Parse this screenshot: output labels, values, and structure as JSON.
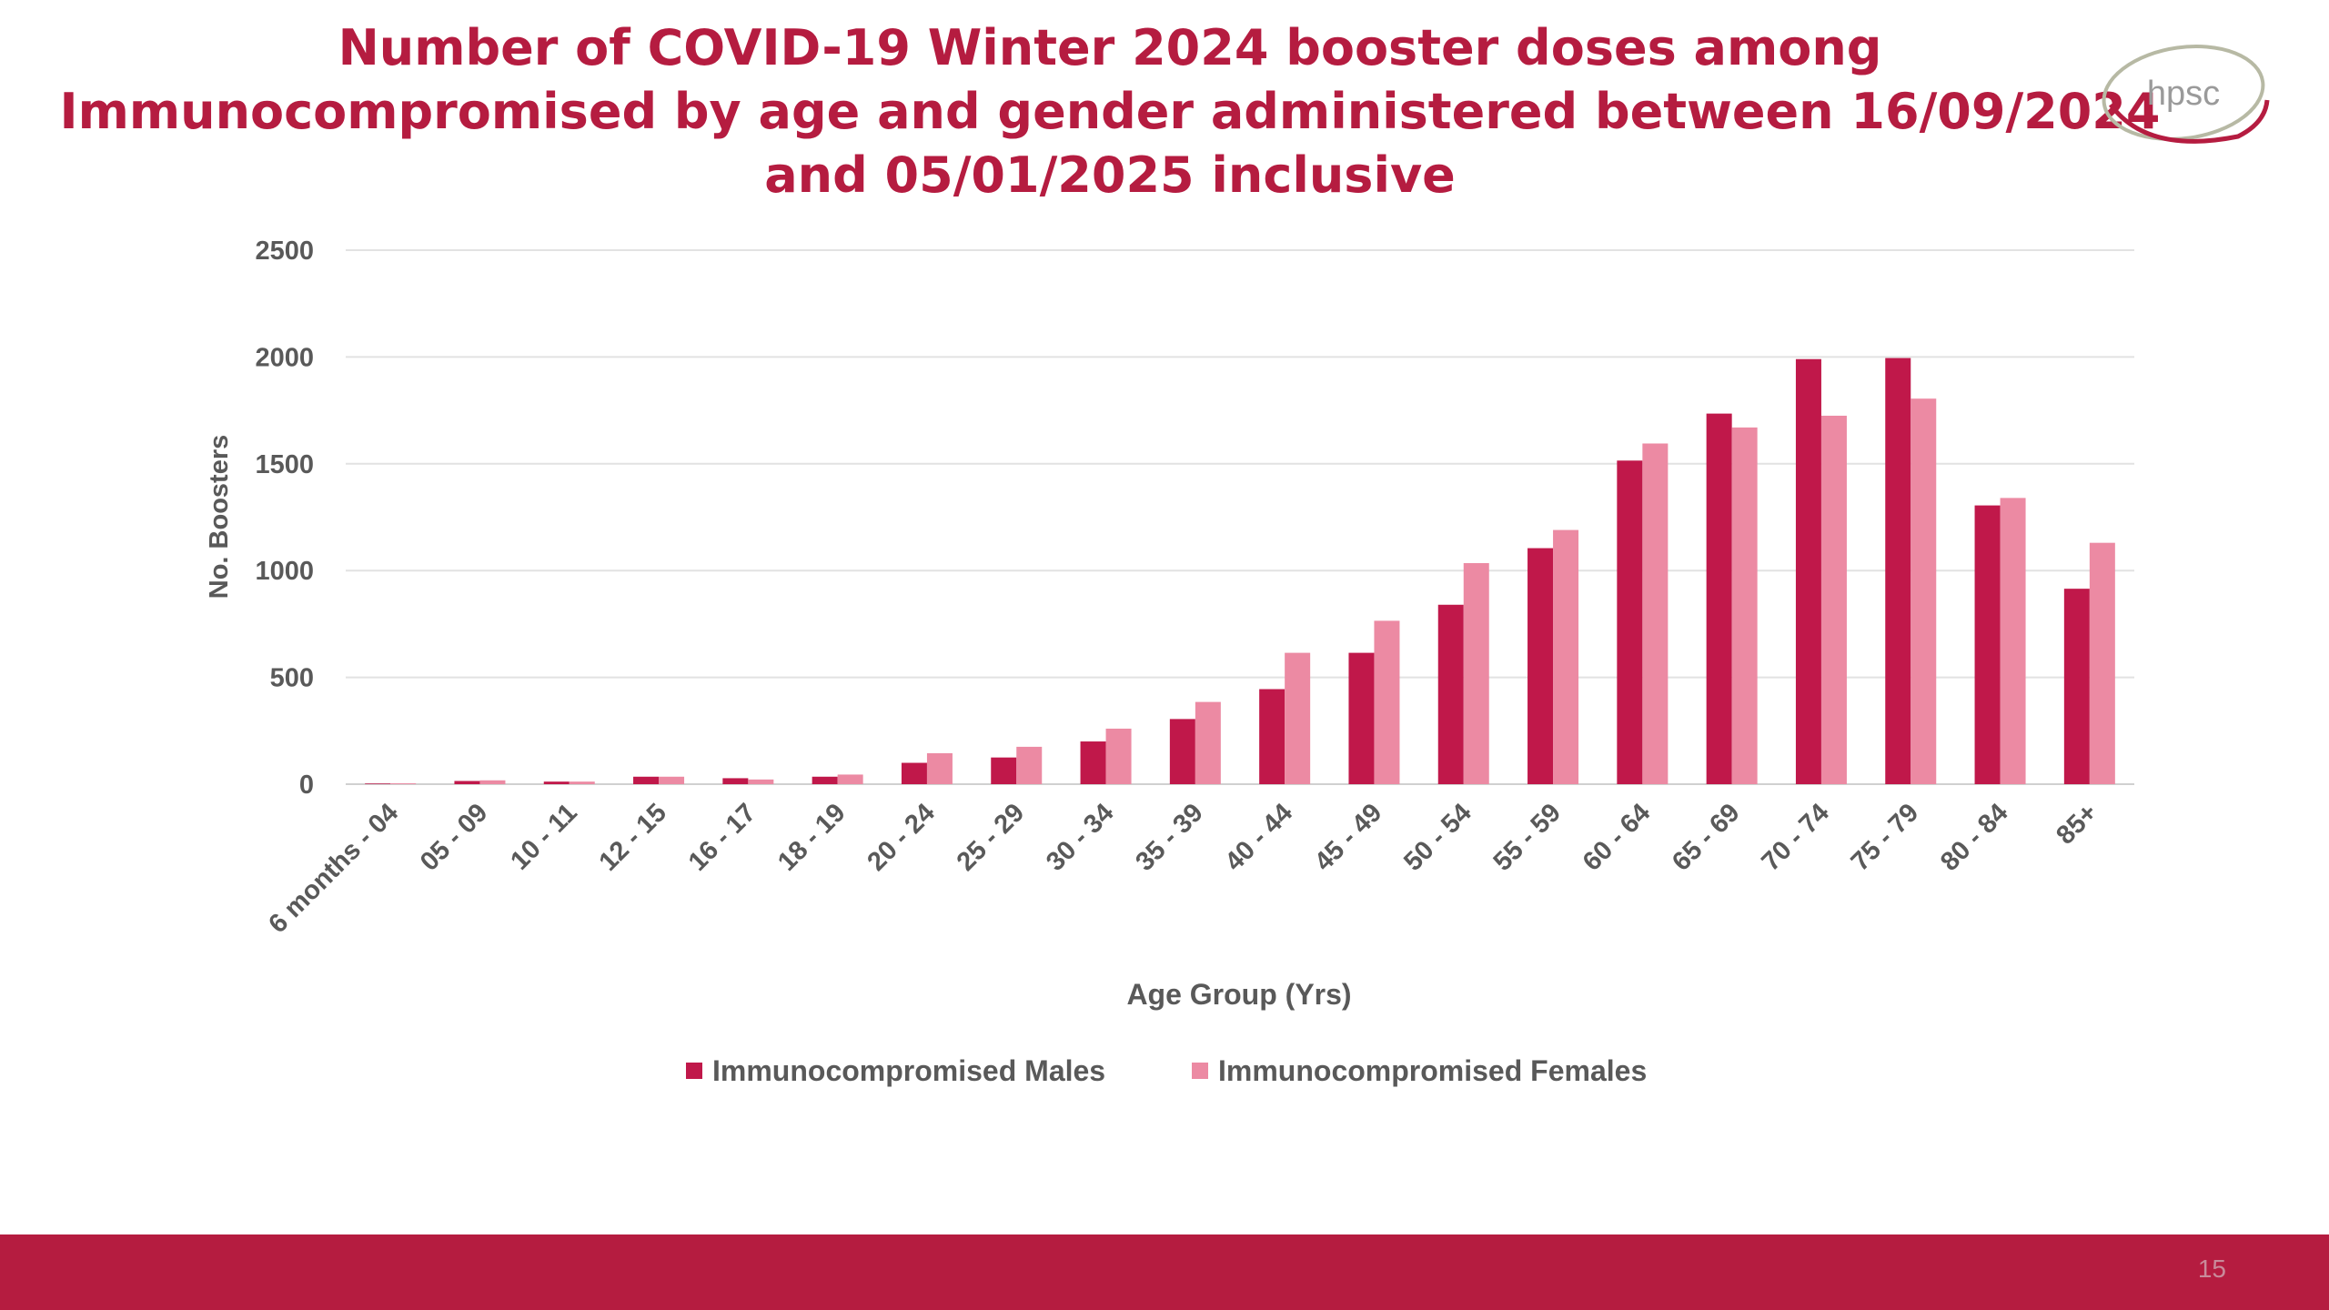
{
  "slide": {
    "title_lines": [
      "Number of COVID-19 Winter 2024 booster doses among",
      "Immunocompromised by age and gender administered between 16/09/2024",
      "and 05/01/2025 inclusive"
    ],
    "logo_text": "hpsc",
    "page_number": "15"
  },
  "colors": {
    "title": "#b51c40",
    "males": "#c0184a",
    "females": "#ec8aa3",
    "footer": "#b51c40",
    "grid": "#e2e2e2",
    "axis_text": "#595959"
  },
  "chart_data": {
    "type": "bar",
    "xlabel": "Age Group (Yrs)",
    "ylabel": "No. Boosters",
    "ylim": [
      0,
      2500
    ],
    "yticks": [
      0,
      500,
      1000,
      1500,
      2000,
      2500
    ],
    "grid": true,
    "legend_position": "bottom",
    "categories": [
      "6 months - 04",
      "05 - 09",
      "10 - 11",
      "12 - 15",
      "16 - 17",
      "18 - 19",
      "20 - 24",
      "25 - 29",
      "30 - 34",
      "35 - 39",
      "40 - 44",
      "45 - 49",
      "50 - 54",
      "55 - 59",
      "60 - 64",
      "65 - 69",
      "70 - 74",
      "75 - 79",
      "80 - 84",
      "85+"
    ],
    "series": [
      {
        "name": "Immunocompromised Males",
        "values": [
          3,
          15,
          12,
          35,
          28,
          35,
          100,
          125,
          200,
          305,
          445,
          615,
          840,
          1105,
          1515,
          1735,
          1990,
          1995,
          1305,
          915
        ]
      },
      {
        "name": "Immunocompromised Females",
        "values": [
          4,
          18,
          12,
          35,
          22,
          45,
          145,
          175,
          260,
          385,
          615,
          765,
          1035,
          1190,
          1595,
          1670,
          1725,
          1805,
          1340,
          1130
        ]
      }
    ]
  }
}
